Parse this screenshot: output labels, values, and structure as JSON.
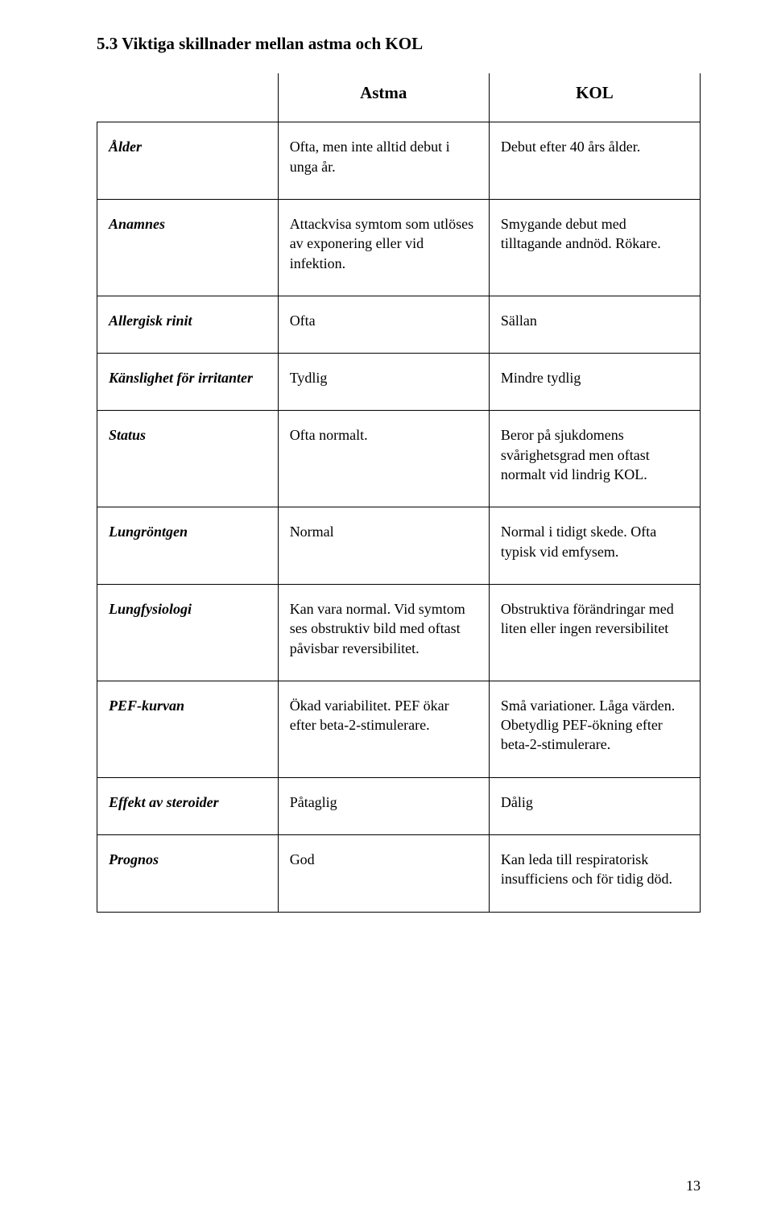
{
  "heading": "5.3  Viktiga skillnader mellan astma och KOL",
  "columns": {
    "astma": "Astma",
    "kol": "KOL"
  },
  "rows": [
    {
      "label": "Ålder",
      "astma": "Ofta, men inte alltid debut i unga år.",
      "kol": "Debut efter 40 års ålder."
    },
    {
      "label": "Anamnes",
      "astma": "Attackvisa symtom som utlöses av exponering eller vid infektion.",
      "kol": "Smygande debut med tilltagande andnöd. Rökare."
    },
    {
      "label": "Allergisk rinit",
      "astma": "Ofta",
      "kol": "Sällan"
    },
    {
      "label": "Känslighet för irritanter",
      "astma": "Tydlig",
      "kol": "Mindre tydlig"
    },
    {
      "label": "Status",
      "astma": "Ofta normalt.",
      "kol": "Beror på sjukdomens svårighetsgrad men oftast normalt vid lindrig KOL."
    },
    {
      "label": "Lungröntgen",
      "astma": "Normal",
      "kol": "Normal i tidigt skede. Ofta typisk vid emfysem."
    },
    {
      "label": "Lungfysiologi",
      "astma": "Kan vara normal. Vid symtom ses obstruktiv bild med oftast påvisbar reversibilitet.",
      "kol": "Obstruktiva förändringar med liten eller ingen reversibilitet"
    },
    {
      "label": "PEF-kurvan",
      "astma": "Ökad variabilitet. PEF ökar efter beta-2-stimulerare.",
      "kol": "Små variationer. Låga värden. Obetydlig PEF-ökning efter beta-2-stimulerare."
    },
    {
      "label": "Effekt av steroider",
      "astma": "Påtaglig",
      "kol": "Dålig"
    },
    {
      "label": "Prognos",
      "astma": "God",
      "kol": "Kan leda till respiratorisk insufficiens och för tidig död."
    }
  ],
  "page_number": "13"
}
